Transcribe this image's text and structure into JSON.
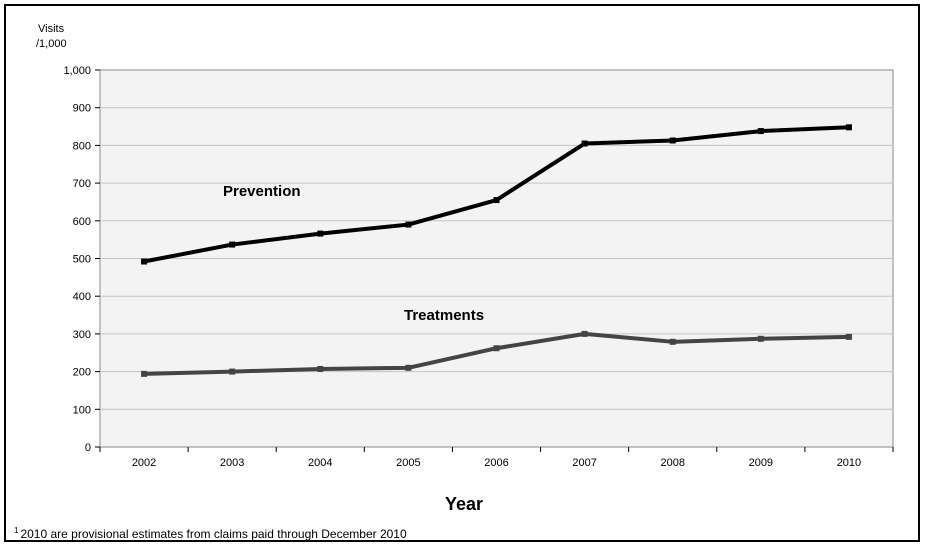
{
  "chart_data": {
    "type": "line",
    "ylabel_line1": "Visits",
    "ylabel_line2": "/1,000",
    "xlabel": "Year",
    "x": [
      "2002",
      "2003",
      "2004",
      "2005",
      "2006",
      "2007",
      "2008",
      "2009",
      "2010"
    ],
    "ylim": [
      0,
      1000
    ],
    "yticks": [
      "0",
      "100",
      "200",
      "300",
      "400",
      "500",
      "600",
      "700",
      "800",
      "900",
      "1,000"
    ],
    "grid": true,
    "series": [
      {
        "name": "Prevention",
        "color": "#000000",
        "values": [
          492,
          537,
          566,
          590,
          655,
          805,
          813,
          838,
          848
        ]
      },
      {
        "name": "Treatments",
        "color": "#444444",
        "values": [
          194,
          200,
          207,
          210,
          262,
          300,
          279,
          287,
          292
        ]
      }
    ]
  },
  "footnote": {
    "marker": "1",
    "text": "2010 are provisional estimates from claims paid through December 2010"
  }
}
